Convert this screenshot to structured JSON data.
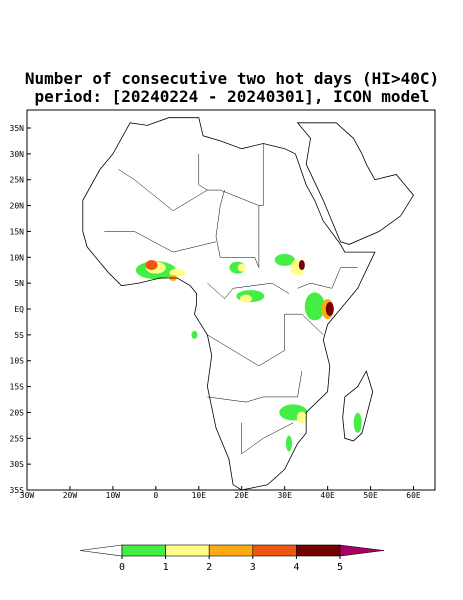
{
  "header": {
    "title": "Number of consecutive two hot days (HI>40C)",
    "subtitle": "period: [20240224 - 20240301], ICON model"
  },
  "map": {
    "latlim": [
      -35,
      35
    ],
    "lonlim": [
      -30,
      65
    ],
    "latticks": [
      {
        "value": 35,
        "label": "35N"
      },
      {
        "value": 30,
        "label": "30N"
      },
      {
        "value": 25,
        "label": "25N"
      },
      {
        "value": 20,
        "label": "20N"
      },
      {
        "value": 15,
        "label": "15N"
      },
      {
        "value": 10,
        "label": "10N"
      },
      {
        "value": 5,
        "label": "5N"
      },
      {
        "value": 0,
        "label": "EQ"
      },
      {
        "value": -5,
        "label": "5S"
      },
      {
        "value": -10,
        "label": "10S"
      },
      {
        "value": -15,
        "label": "15S"
      },
      {
        "value": -20,
        "label": "20S"
      },
      {
        "value": -25,
        "label": "25S"
      },
      {
        "value": -30,
        "label": "30S"
      },
      {
        "value": -35,
        "label": "35S"
      }
    ],
    "lonticks": [
      {
        "value": -30,
        "label": "30W"
      },
      {
        "value": -20,
        "label": "20W"
      },
      {
        "value": -10,
        "label": "10W"
      },
      0,
      {
        "value": 10,
        "label": "10E"
      },
      {
        "value": 20,
        "label": "20E"
      },
      {
        "value": 30,
        "label": "30E"
      },
      {
        "value": 40,
        "label": "40E"
      },
      {
        "value": 50,
        "label": "50E"
      },
      {
        "value": 60,
        "label": "60E"
      }
    ]
  },
  "colorbar": {
    "ticks": [
      0,
      1,
      2,
      3,
      4,
      5
    ],
    "colors": [
      "#ffffff",
      "#44ee44",
      "#ffff88",
      "#ffaa11",
      "#ee5511",
      "#770000",
      "#aa0066"
    ]
  }
}
